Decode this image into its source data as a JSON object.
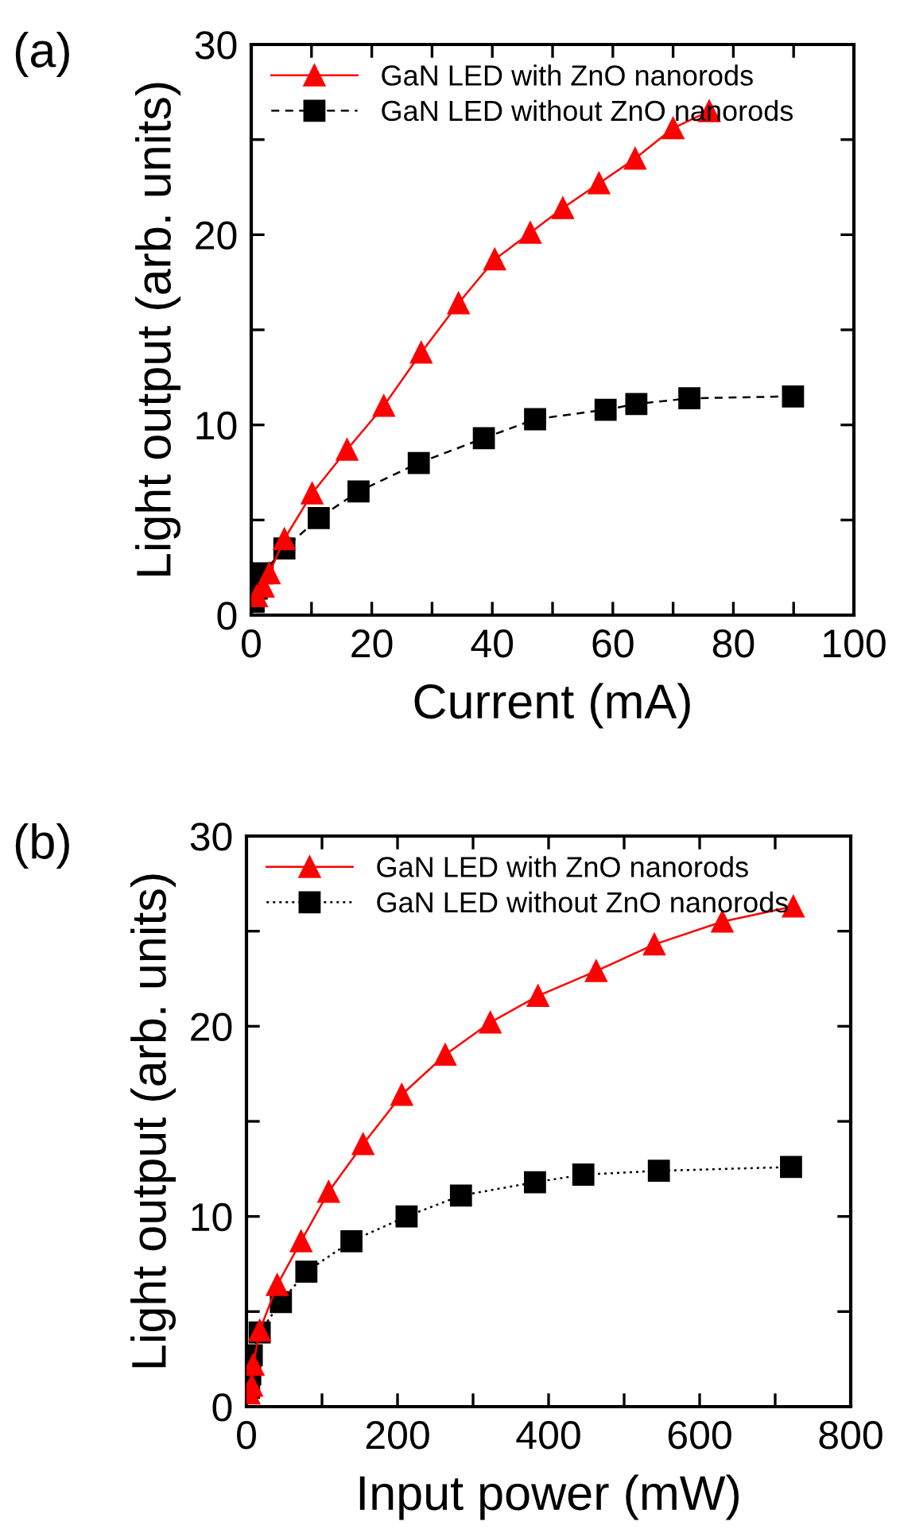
{
  "chart_data": [
    {
      "type": "line",
      "xlabel": "Current (mA)",
      "ylabel": "Light output (arb. units)",
      "annotations": [
        "(a)"
      ],
      "xlim": [
        0,
        100
      ],
      "ylim": [
        0,
        30
      ],
      "xticks": [
        0,
        {
          "value": 10,
          "label": null
        },
        20,
        {
          "value": 30,
          "label": null
        },
        40,
        {
          "value": 50,
          "label": null
        },
        60,
        {
          "value": 70,
          "label": null
        },
        80,
        {
          "value": 90,
          "label": null
        },
        100
      ],
      "yticks": [
        0,
        {
          "value": 5,
          "label": null
        },
        10,
        {
          "value": 15,
          "label": null
        },
        20,
        {
          "value": 25,
          "label": null
        },
        30
      ],
      "grid": false,
      "legend": "top left",
      "series": [
        {
          "name": "GaN LED with ZnO nanorods",
          "color": "#ff0000",
          "marker": "triangle",
          "line_style": "solid",
          "x": [
            0.9,
            2,
            3,
            5.5,
            10.1,
            15.9,
            22.0,
            28.2,
            34.4,
            40.4,
            46.3,
            51.7,
            57.7,
            63.7,
            70.0,
            76.0
          ],
          "values": [
            1.0,
            1.5,
            2.2,
            4.0,
            6.4,
            8.7,
            11.0,
            13.8,
            16.4,
            18.7,
            20.1,
            21.4,
            22.7,
            24.0,
            25.6,
            26.5
          ]
        },
        {
          "name": "GaN LED without ZnO nanorods",
          "color": "#000000",
          "marker": "square",
          "line_style": "dashed",
          "x": [
            0.4,
            0.9,
            1.9,
            5.5,
            11.2,
            17.8,
            27.8,
            38.6,
            47.1,
            58.8,
            63.9,
            72.7,
            89.9
          ],
          "values": [
            0.7,
            1.4,
            2.2,
            3.5,
            5.1,
            6.5,
            8.0,
            9.3,
            10.3,
            10.8,
            11.1,
            11.4,
            11.5
          ]
        }
      ]
    },
    {
      "type": "line",
      "xlabel": "Input power (mW)",
      "ylabel": "Light output (arb. units)",
      "annotations": [
        "(b)"
      ],
      "xlim": [
        0,
        800
      ],
      "ylim": [
        0,
        30
      ],
      "xticks": [
        0,
        {
          "value": 100,
          "label": null
        },
        200,
        {
          "value": 300,
          "label": null
        },
        400,
        {
          "value": 500,
          "label": null
        },
        600,
        {
          "value": 700,
          "label": null
        },
        800
      ],
      "yticks": [
        0,
        {
          "value": 5,
          "label": null
        },
        10,
        {
          "value": 15,
          "label": null
        },
        20,
        {
          "value": 25,
          "label": null
        },
        30
      ],
      "grid": false,
      "legend": "top left",
      "series": [
        {
          "name": "GaN LED with ZnO nanorods",
          "color": "#ff0000",
          "marker": "triangle",
          "line_style": "solid",
          "x": [
            3.5,
            7,
            9,
            17.5,
            40.7,
            72.3,
            108.8,
            154.4,
            205.6,
            263.2,
            322.8,
            386,
            463,
            540,
            630,
            724
          ],
          "values": [
            0.7,
            1.1,
            2.2,
            4.0,
            6.4,
            8.7,
            11.3,
            13.8,
            16.4,
            18.5,
            20.2,
            21.6,
            22.9,
            24.3,
            25.5,
            26.3
          ]
        },
        {
          "name": "GaN LED without ZnO nanorods",
          "color": "#000000",
          "marker": "square",
          "line_style": "dotted",
          "x": [
            3.5,
            5,
            7,
            17.5,
            45.6,
            79.3,
            139,
            212,
            284,
            382,
            446,
            546,
            721
          ],
          "values": [
            1.0,
            1.7,
            2.7,
            3.9,
            5.5,
            7.1,
            8.7,
            10.0,
            11.1,
            11.8,
            12.2,
            12.4,
            12.6
          ]
        }
      ]
    }
  ]
}
